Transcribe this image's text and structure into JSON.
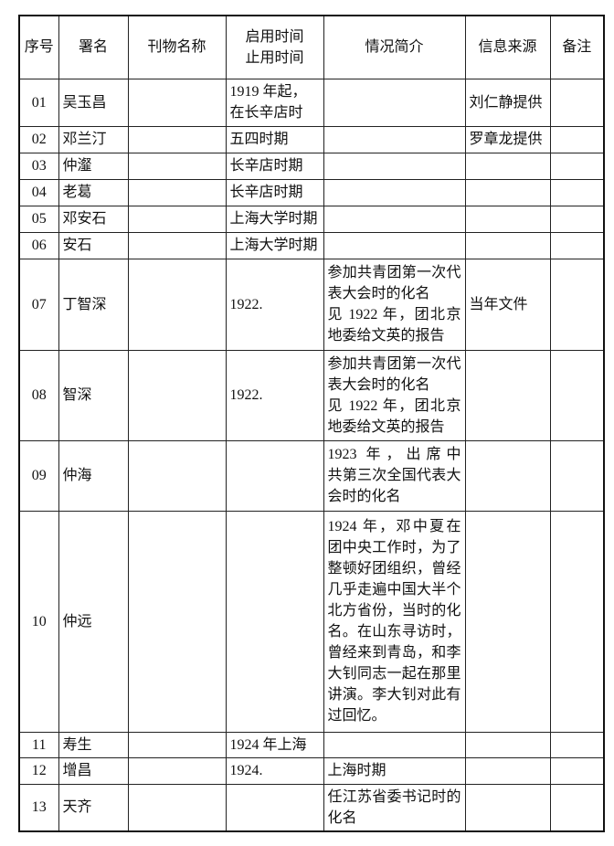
{
  "headers": [
    "序号",
    "署名",
    "刊物名称",
    "启用时间\n止用时间",
    "情况简介",
    "信息来源",
    "备注"
  ],
  "header_time_line1": "启用时间",
  "header_time_line2": "止用时间",
  "rows": [
    {
      "no": "01",
      "name": "吴玉昌",
      "journal": "",
      "time": "1919 年起，在长辛店时",
      "desc": "",
      "source": "刘仁静提供",
      "note": ""
    },
    {
      "no": "02",
      "name": "邓兰汀",
      "journal": "",
      "time": "五四时期",
      "desc": "",
      "source": "罗章龙提供",
      "note": ""
    },
    {
      "no": "03",
      "name": "仲瀣",
      "journal": "",
      "time": "长辛店时期",
      "desc": "",
      "source": "",
      "note": ""
    },
    {
      "no": "04",
      "name": "老葛",
      "journal": "",
      "time": "长辛店时期",
      "desc": "",
      "source": "",
      "note": ""
    },
    {
      "no": "05",
      "name": "邓安石",
      "journal": "",
      "time": "上海大学时期",
      "desc": "",
      "source": "",
      "note": ""
    },
    {
      "no": "06",
      "name": "安石",
      "journal": "",
      "time": "上海大学时期",
      "desc": "",
      "source": "",
      "note": ""
    },
    {
      "no": "07",
      "name": "丁智深",
      "journal": "",
      "time": "1922.",
      "desc": "参加共青团第一次代表大会时的化名\n见 1922 年，团北京地委给文英的报告",
      "source": "当年文件",
      "note": ""
    },
    {
      "no": "08",
      "name": "智深",
      "journal": "",
      "time": "1922.",
      "desc": "参加共青团第一次代表大会时的化名\n见 1922 年，团北京地委给文英的报告",
      "source": "",
      "note": ""
    },
    {
      "no": "09",
      "name": "仲海",
      "journal": "",
      "time": "",
      "desc": "1923 年，出席中　共第三次全国代表大会时的化名",
      "source": "",
      "note": ""
    },
    {
      "no": "10",
      "name": "仲远",
      "journal": "",
      "time": "",
      "desc": "1924 年，邓中夏在团中央工作时，为了整顿好团组织，曾经几乎走遍中国大半个北方省份，当时的化名。在山东寻访时，曾经来到青岛，和李大钊同志一起在那里讲演。李大钊对此有过回忆。",
      "source": "",
      "note": ""
    },
    {
      "no": "11",
      "name": "寿生",
      "journal": "",
      "time": "1924 年上海",
      "desc": "",
      "source": "",
      "note": ""
    },
    {
      "no": "12",
      "name": "增昌",
      "journal": "",
      "time": "1924.",
      "desc": "上海时期",
      "source": "",
      "note": ""
    },
    {
      "no": "13",
      "name": "天齐",
      "journal": "",
      "time": "",
      "desc": "任江苏省委书记时的化名",
      "source": "",
      "note": ""
    }
  ]
}
